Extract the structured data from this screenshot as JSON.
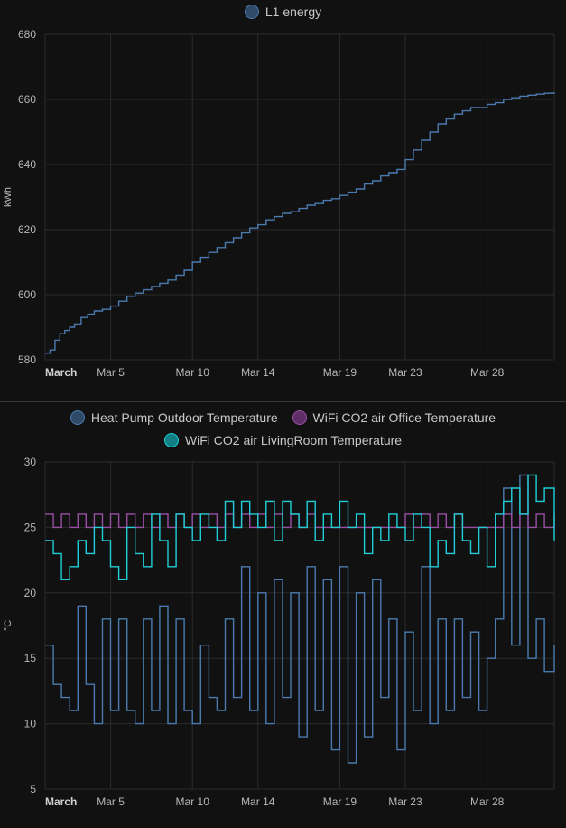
{
  "chart_data": [
    {
      "type": "line",
      "title": "",
      "legend": [
        "L1 energy"
      ],
      "ylabel": "kWh",
      "ylim": [
        580,
        680
      ],
      "yticks": [
        "580",
        "600",
        "620",
        "640",
        "660",
        "680"
      ],
      "xlim_days": [
        1,
        32.1
      ],
      "xticks": [
        {
          "day": 1,
          "label": "March",
          "bold": true
        },
        {
          "day": 5,
          "label": "Mar 5"
        },
        {
          "day": 10,
          "label": "Mar 10"
        },
        {
          "day": 14,
          "label": "Mar 14"
        },
        {
          "day": 19,
          "label": "Mar 19"
        },
        {
          "day": 23,
          "label": "Mar 23"
        },
        {
          "day": 28,
          "label": "Mar 28"
        }
      ],
      "grid": true,
      "series": [
        {
          "name": "L1 energy",
          "color": "#4a7bb0",
          "x": [
            1.0,
            1.3,
            1.6,
            1.9,
            2.2,
            2.5,
            2.8,
            3.2,
            3.6,
            4.0,
            4.5,
            5.0,
            5.5,
            6.0,
            6.5,
            7.0,
            7.5,
            8.0,
            8.5,
            9.0,
            9.5,
            10.0,
            10.5,
            11.0,
            11.5,
            12.0,
            12.5,
            13.0,
            13.5,
            14.0,
            14.5,
            15.0,
            15.5,
            16.0,
            16.5,
            17.0,
            17.5,
            18.0,
            18.5,
            19.0,
            19.5,
            20.0,
            20.5,
            21.0,
            21.5,
            22.0,
            22.5,
            23.0,
            23.5,
            24.0,
            24.5,
            25.0,
            25.5,
            26.0,
            26.5,
            27.0,
            27.5,
            28.0,
            28.5,
            29.0,
            29.5,
            30.0,
            30.5,
            31.0,
            31.5,
            32.1
          ],
          "y": [
            582,
            583,
            586,
            588,
            589,
            590,
            591,
            593,
            594,
            595,
            595.5,
            596.5,
            598,
            599.5,
            600.5,
            601.5,
            602.5,
            603.5,
            604.5,
            606,
            607.5,
            610,
            611.5,
            613,
            614.5,
            616,
            617.5,
            619,
            620.5,
            621.5,
            623,
            624,
            625,
            625.5,
            626.5,
            627.5,
            628,
            629,
            629.5,
            630.5,
            631.5,
            632.5,
            634,
            635,
            636.5,
            637.5,
            638.5,
            641.5,
            644.5,
            647.5,
            650,
            652.5,
            654,
            655.5,
            656.5,
            657.5,
            657.5,
            658.5,
            659,
            660,
            660.5,
            661,
            661.3,
            661.6,
            661.9,
            662.2
          ]
        }
      ]
    },
    {
      "type": "line",
      "title": "",
      "legend": [
        "Heat Pump Outdoor Temperature",
        "WiFi CO2 air Office Temperature",
        "WiFi CO2 air LivingRoom Temperature"
      ],
      "ylabel": "°C",
      "ylim": [
        5,
        30
      ],
      "yticks": [
        "5",
        "10",
        "15",
        "20",
        "25",
        "30"
      ],
      "xlim_days": [
        1,
        32.1
      ],
      "xticks": [
        {
          "day": 1,
          "label": "March",
          "bold": true
        },
        {
          "day": 5,
          "label": "Mar 5"
        },
        {
          "day": 10,
          "label": "Mar 10"
        },
        {
          "day": 14,
          "label": "Mar 14"
        },
        {
          "day": 19,
          "label": "Mar 19"
        },
        {
          "day": 23,
          "label": "Mar 23"
        },
        {
          "day": 28,
          "label": "Mar 28"
        }
      ],
      "grid": true,
      "series": [
        {
          "name": "Heat Pump Outdoor Temperature",
          "color": "#4a7bb0",
          "x": [
            1.0,
            1.5,
            2.0,
            2.5,
            3.0,
            3.5,
            4.0,
            4.5,
            5.0,
            5.5,
            6.0,
            6.5,
            7.0,
            7.5,
            8.0,
            8.5,
            9.0,
            9.5,
            10.0,
            10.5,
            11.0,
            11.5,
            12.0,
            12.5,
            13.0,
            13.5,
            14.0,
            14.5,
            15.0,
            15.5,
            16.0,
            16.5,
            17.0,
            17.5,
            18.0,
            18.5,
            19.0,
            19.5,
            20.0,
            20.5,
            21.0,
            21.5,
            22.0,
            22.5,
            23.0,
            23.5,
            24.0,
            24.5,
            25.0,
            25.5,
            26.0,
            26.5,
            27.0,
            27.5,
            28.0,
            28.5,
            29.0,
            29.5,
            30.0,
            30.5,
            31.0,
            31.5,
            32.1
          ],
          "y": [
            16,
            13,
            12,
            11,
            19,
            13,
            10,
            18,
            11,
            18,
            11,
            10,
            18,
            11,
            19,
            10,
            18,
            11,
            10,
            16,
            12,
            11,
            18,
            12,
            22,
            11,
            20,
            10,
            21,
            12,
            20,
            9,
            22,
            11,
            21,
            8,
            22,
            7,
            20,
            9,
            21,
            12,
            18,
            8,
            17,
            11,
            22,
            10,
            18,
            11,
            18,
            12,
            17,
            11,
            15,
            18,
            28,
            16,
            29,
            15,
            18,
            14,
            16
          ]
        },
        {
          "name": "WiFi CO2 air Office Temperature",
          "color": "#9a4fa5",
          "x": [
            1.0,
            1.5,
            2.0,
            2.5,
            3.0,
            3.5,
            4.0,
            4.5,
            5.0,
            5.5,
            6.0,
            6.5,
            7.0,
            7.5,
            8.0,
            8.5,
            9.0,
            9.5,
            10.0,
            10.5,
            11.0,
            11.5,
            12.0,
            12.5,
            13.0,
            13.5,
            14.0,
            14.5,
            15.0,
            15.5,
            16.0,
            16.5,
            17.0,
            17.5,
            18.0,
            18.5,
            19.0,
            19.5,
            20.0,
            20.5,
            21.0,
            21.5,
            22.0,
            22.5,
            23.0,
            23.5,
            24.0,
            24.5,
            25.0,
            25.5,
            26.0,
            26.5,
            27.0,
            27.5,
            28.0,
            28.5,
            29.0,
            29.5,
            30.0,
            30.5,
            31.0,
            31.5,
            32.1
          ],
          "y": [
            26,
            25,
            26,
            25,
            26,
            25,
            26,
            25,
            26,
            25,
            26,
            25,
            26,
            25,
            26,
            25,
            26,
            25,
            26,
            25,
            26,
            25,
            26,
            25,
            26,
            25,
            26,
            25,
            26,
            25,
            26,
            25,
            26,
            25,
            25,
            25,
            25,
            25,
            25,
            25,
            25,
            25,
            25,
            25,
            26,
            25,
            26,
            25,
            26,
            25,
            26,
            25,
            25,
            25,
            25,
            25,
            26,
            25,
            26,
            25,
            26,
            25,
            26
          ]
        },
        {
          "name": "WiFi CO2 air LivingRoom Temperature",
          "color": "#20d0d8",
          "x": [
            1.0,
            1.5,
            2.0,
            2.5,
            3.0,
            3.5,
            4.0,
            4.5,
            5.0,
            5.5,
            6.0,
            6.5,
            7.0,
            7.5,
            8.0,
            8.5,
            9.0,
            9.5,
            10.0,
            10.5,
            11.0,
            11.5,
            12.0,
            12.5,
            13.0,
            13.5,
            14.0,
            14.5,
            15.0,
            15.5,
            16.0,
            16.5,
            17.0,
            17.5,
            18.0,
            18.5,
            19.0,
            19.5,
            20.0,
            20.5,
            21.0,
            21.5,
            22.0,
            22.5,
            23.0,
            23.5,
            24.0,
            24.5,
            25.0,
            25.5,
            26.0,
            26.5,
            27.0,
            27.5,
            28.0,
            28.5,
            29.0,
            29.5,
            30.0,
            30.5,
            31.0,
            31.5,
            32.1
          ],
          "y": [
            24,
            23,
            21,
            22,
            24,
            23,
            25,
            24,
            22,
            21,
            25,
            23,
            22,
            26,
            24,
            22,
            26,
            25,
            24,
            26,
            25,
            24,
            27,
            25,
            27,
            26,
            25,
            27,
            24,
            27,
            26,
            25,
            27,
            24,
            26,
            25,
            27,
            25,
            26,
            23,
            25,
            24,
            26,
            25,
            24,
            26,
            25,
            22,
            24,
            23,
            26,
            24,
            23,
            25,
            22,
            26,
            27,
            28,
            26,
            29,
            27,
            28,
            24
          ]
        }
      ]
    }
  ]
}
